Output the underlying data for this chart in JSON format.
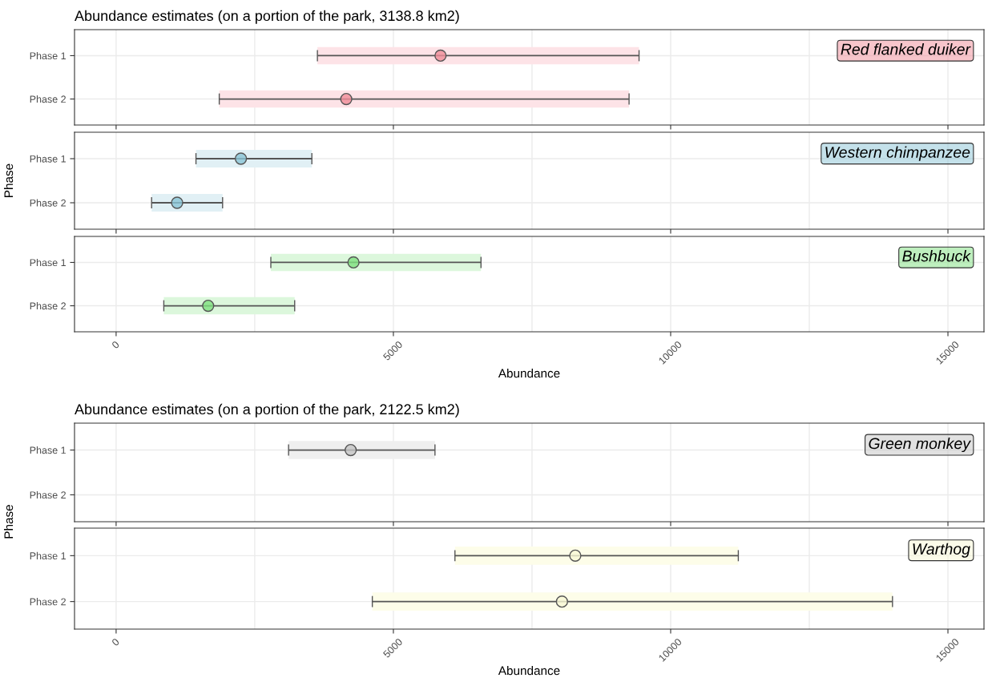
{
  "chart_data": [
    {
      "type": "scatter",
      "orientation": "horizontal",
      "title": "Abundance estimates (on a portion of the park, 3138.8 km2)",
      "annotations": [
        "Red flanked duiker"
      ],
      "categories": [
        "Phase 1",
        "Phase 2"
      ],
      "xlim": [
        -750,
        15650
      ],
      "xticks": [
        0,
        5000,
        10000,
        15000
      ],
      "grid": true,
      "marker": "circle",
      "tick_labels": "y",
      "series": [
        {
          "type": "bar",
          "color": "#fde3e7",
          "base": [
            3630,
            1860
          ],
          "values": [
            5800,
            7390
          ]
        },
        {
          "type": "scatter",
          "color": "#f08c98",
          "values": [
            5850,
            4150
          ],
          "errors": [
            [
              3630,
              9430
            ],
            [
              1860,
              9250
            ]
          ]
        }
      ]
    },
    {
      "type": "scatter",
      "orientation": "horizontal",
      "ylabel": "Phase",
      "annotations": [
        "Western chimpanzee"
      ],
      "categories": [
        "Phase 1",
        "Phase 2"
      ],
      "xlim": [
        -750,
        15650
      ],
      "xticks": [
        0,
        5000,
        10000,
        15000
      ],
      "grid": true,
      "marker": "circle",
      "tick_labels": "y",
      "series": [
        {
          "type": "bar",
          "color": "#e1f0f5",
          "base": [
            1440,
            640
          ],
          "values": [
            2090,
            1280
          ]
        },
        {
          "type": "scatter",
          "color": "#8ac4d6",
          "values": [
            2250,
            1100
          ],
          "errors": [
            [
              1440,
              3530
            ],
            [
              640,
              1920
            ]
          ]
        }
      ]
    },
    {
      "type": "scatter",
      "orientation": "horizontal",
      "xlabel": "Abundance",
      "annotations": [
        "Bushbuck"
      ],
      "categories": [
        "Phase 1",
        "Phase 2"
      ],
      "xlim": [
        -750,
        15650
      ],
      "xticks": [
        0,
        5000,
        10000,
        15000
      ],
      "grid": true,
      "marker": "circle",
      "series": [
        {
          "type": "bar",
          "color": "#dcf7dc",
          "base": [
            2790,
            860
          ],
          "values": [
            3790,
            2360
          ]
        },
        {
          "type": "scatter",
          "color": "#7ee07e",
          "values": [
            4280,
            1660
          ],
          "errors": [
            [
              2790,
              6580
            ],
            [
              860,
              3220
            ]
          ]
        }
      ]
    },
    {
      "type": "scatter",
      "orientation": "horizontal",
      "title": "Abundance estimates (on a portion of the park, 2122.5 km2)",
      "ylabel": "Phase",
      "annotations": [
        "Green monkey"
      ],
      "categories": [
        "Phase 1",
        "Phase 2"
      ],
      "xlim": [
        -750,
        15650
      ],
      "xticks": [
        0,
        5000,
        10000,
        15000
      ],
      "grid": true,
      "marker": "circle",
      "tick_labels": "y",
      "series": [
        {
          "type": "bar",
          "color": "#efefef",
          "base": [
            3110,
            null
          ],
          "values": [
            2640,
            null
          ]
        },
        {
          "type": "scatter",
          "color": "#c4c4c4",
          "values": [
            4230,
            null
          ],
          "errors": [
            [
              3110,
              5750
            ],
            null
          ]
        }
      ]
    },
    {
      "type": "scatter",
      "orientation": "horizontal",
      "xlabel": "Abundance",
      "annotations": [
        "Warthog"
      ],
      "categories": [
        "Phase 1",
        "Phase 2"
      ],
      "xlim": [
        -750,
        15650
      ],
      "xticks": [
        0,
        5000,
        10000,
        15000
      ],
      "grid": true,
      "marker": "circle",
      "series": [
        {
          "type": "bar",
          "color": "#fdfde9",
          "base": [
            6110,
            4620
          ],
          "values": [
            5110,
            9380
          ]
        },
        {
          "type": "scatter",
          "color": "#f7f7d4",
          "values": [
            8280,
            8040
          ],
          "errors": [
            [
              6110,
              11220
            ],
            [
              4620,
              14000
            ]
          ]
        }
      ]
    }
  ]
}
